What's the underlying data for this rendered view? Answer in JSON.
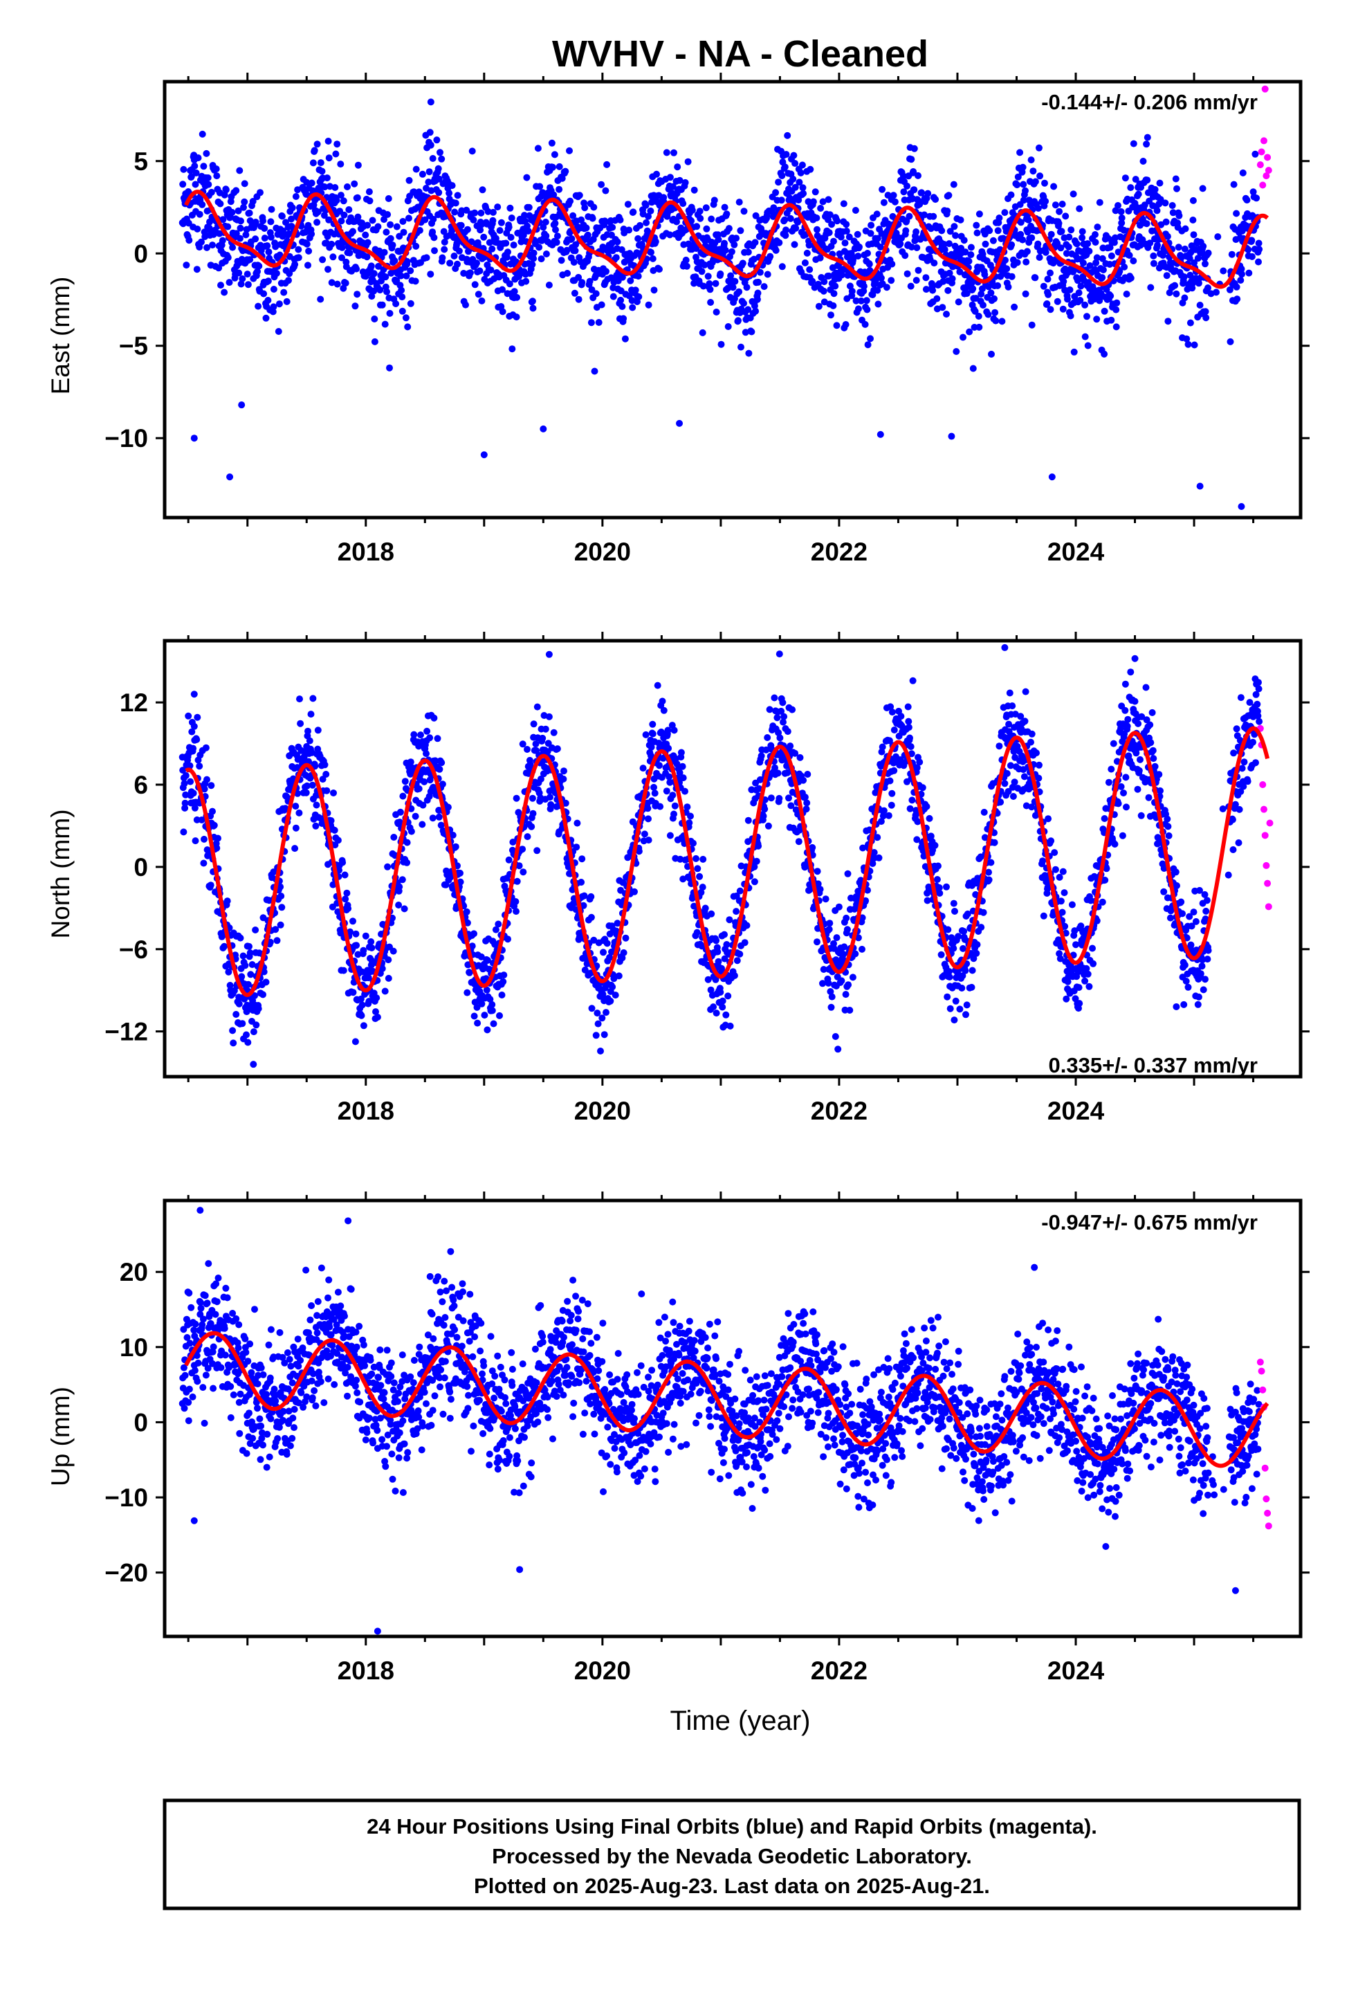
{
  "title": "WVHV  - NA - Cleaned",
  "x_axis_label": "Time (year)",
  "footer": {
    "line1": "24 Hour Positions Using Final Orbits (blue) and Rapid Orbits (magenta).",
    "line2": "Processed by the Nevada Geodetic Laboratory.",
    "line3": "Plotted on 2025-Aug-23. Last data on 2025-Aug-21."
  },
  "colors": {
    "final_orbits": "#0000ff",
    "rapid_orbits": "#ff00ff",
    "model_fit": "#ff0000",
    "axes": "#000000"
  },
  "chart_data": [
    {
      "type": "scatter",
      "title": "",
      "xlabel": "",
      "ylabel": "East (mm)",
      "xlim": [
        2016.3,
        2025.9
      ],
      "ylim": [
        -14.3,
        9.3
      ],
      "x_ticks": [
        2018,
        2020,
        2022,
        2024
      ],
      "x_tick_labels": [
        "2018",
        "2020",
        "2022",
        "2024"
      ],
      "y_ticks": [
        -10,
        -5,
        0,
        5
      ],
      "y_tick_labels": [
        "−10",
        "−5",
        "0",
        "5"
      ],
      "rate_label": "-0.144+/- 0.206 mm/yr",
      "rate_label_position": "top-right",
      "fit": {
        "mean": 0.5,
        "trend_mm_per_yr": -0.144,
        "annual_amplitude": 1.7,
        "annual_peak": 0.62,
        "semiannual_amplitude": 0.6,
        "semiannual_peak": 0.55
      },
      "scatter_sd": 1.6,
      "rapid_points": [
        {
          "x": 2025.56,
          "y": 4.8
        },
        {
          "x": 2025.57,
          "y": 5.5
        },
        {
          "x": 2025.58,
          "y": 3.7
        },
        {
          "x": 2025.59,
          "y": 6.1
        },
        {
          "x": 2025.6,
          "y": 8.9
        },
        {
          "x": 2025.61,
          "y": 4.2
        },
        {
          "x": 2025.62,
          "y": 5.2
        },
        {
          "x": 2025.63,
          "y": 4.5
        }
      ],
      "outliers": [
        {
          "x": 2016.55,
          "y": -10
        },
        {
          "x": 2016.85,
          "y": -12.1
        },
        {
          "x": 2016.95,
          "y": -8.2
        },
        {
          "x": 2018.55,
          "y": 8.2
        },
        {
          "x": 2019.0,
          "y": -10.9
        },
        {
          "x": 2019.5,
          "y": -9.5
        },
        {
          "x": 2020.65,
          "y": -9.2
        },
        {
          "x": 2022.35,
          "y": -9.8
        },
        {
          "x": 2022.95,
          "y": -9.9
        },
        {
          "x": 2023.8,
          "y": -12.1
        },
        {
          "x": 2025.05,
          "y": -12.6
        },
        {
          "x": 2025.4,
          "y": -13.7
        }
      ]
    },
    {
      "type": "scatter",
      "title": "",
      "xlabel": "",
      "ylabel": "North (mm)",
      "xlim": [
        2016.3,
        2025.9
      ],
      "ylim": [
        -15.3,
        16.5
      ],
      "x_ticks": [
        2018,
        2020,
        2022,
        2024
      ],
      "x_tick_labels": [
        "2018",
        "2020",
        "2022",
        "2024"
      ],
      "y_ticks": [
        -12,
        -6,
        0,
        6,
        12
      ],
      "y_tick_labels": [
        "−12",
        "−6",
        "0",
        "6",
        "12"
      ],
      "rate_label": "0.335+/- 0.337 mm/yr",
      "rate_label_position": "bottom-right",
      "fit": {
        "mean": 0.3,
        "trend_mm_per_yr": 0.335,
        "annual_amplitude": 8.3,
        "annual_peak": 0.5,
        "semiannual_amplitude": 0,
        "semiannual_peak": 0
      },
      "scatter_sd": 1.9,
      "rapid_points": [
        {
          "x": 2025.56,
          "y": 10.1
        },
        {
          "x": 2025.57,
          "y": 8.9
        },
        {
          "x": 2025.58,
          "y": 6.0
        },
        {
          "x": 2025.59,
          "y": 4.2
        },
        {
          "x": 2025.6,
          "y": 2.3
        },
        {
          "x": 2025.61,
          "y": 0.1
        },
        {
          "x": 2025.62,
          "y": -1.2
        },
        {
          "x": 2025.63,
          "y": -2.9
        },
        {
          "x": 2025.64,
          "y": 3.2
        }
      ],
      "outliers": [
        {
          "x": 2016.55,
          "y": 12.6
        },
        {
          "x": 2017.05,
          "y": -14.4
        },
        {
          "x": 2019.55,
          "y": 15.5
        },
        {
          "x": 2023.4,
          "y": 16.0
        },
        {
          "x": 2024.5,
          "y": 15.2
        },
        {
          "x": 2024.85,
          "y": -10.2
        }
      ]
    },
    {
      "type": "scatter",
      "title": "",
      "xlabel": "Time (year)",
      "ylabel": "Up (mm)",
      "xlim": [
        2016.3,
        2025.9
      ],
      "ylim": [
        -28.5,
        29.5
      ],
      "x_ticks": [
        2018,
        2020,
        2022,
        2024
      ],
      "x_tick_labels": [
        "2018",
        "2020",
        "2022",
        "2024"
      ],
      "y_ticks": [
        -20,
        -10,
        0,
        10,
        20
      ],
      "y_tick_labels": [
        "−20",
        "−10",
        "0",
        "10",
        "20"
      ],
      "rate_label": "-0.947+/- 0.675 mm/yr",
      "rate_label_position": "top-right",
      "fit": {
        "mean": 3.0,
        "trend_mm_per_yr": -0.947,
        "annual_amplitude": 4.8,
        "annual_peak": 0.72,
        "semiannual_amplitude": 0,
        "semiannual_peak": 0
      },
      "scatter_sd": 4.0,
      "rapid_points": [
        {
          "x": 2025.56,
          "y": 8.0
        },
        {
          "x": 2025.57,
          "y": 6.8
        },
        {
          "x": 2025.58,
          "y": 4.3
        },
        {
          "x": 2025.59,
          "y": 2.0
        },
        {
          "x": 2025.6,
          "y": -6.1
        },
        {
          "x": 2025.61,
          "y": -10.2
        },
        {
          "x": 2025.62,
          "y": -12.1
        },
        {
          "x": 2025.63,
          "y": -13.8
        }
      ],
      "outliers": [
        {
          "x": 2016.6,
          "y": 28.2
        },
        {
          "x": 2016.55,
          "y": -13.1
        },
        {
          "x": 2017.85,
          "y": 26.8
        },
        {
          "x": 2018.1,
          "y": -27.8
        },
        {
          "x": 2019.3,
          "y": -19.6
        },
        {
          "x": 2019.75,
          "y": 18.9
        },
        {
          "x": 2023.65,
          "y": 20.6
        },
        {
          "x": 2025.35,
          "y": -22.4
        }
      ]
    }
  ]
}
